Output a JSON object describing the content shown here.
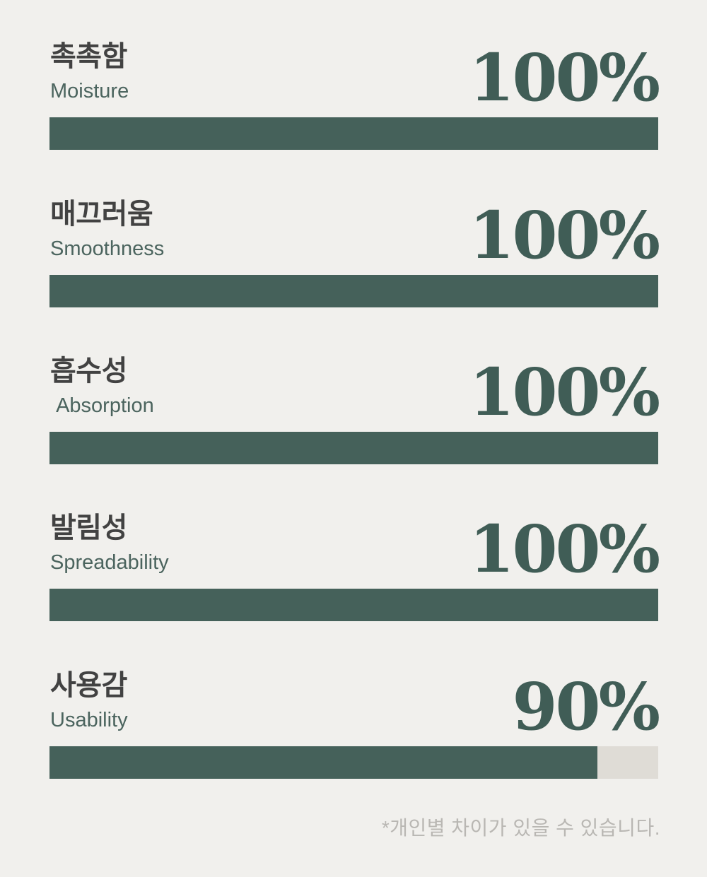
{
  "metrics": [
    {
      "name_ko": "촉촉함",
      "name_en": "Moisture",
      "percent": 100,
      "percent_label": "100%"
    },
    {
      "name_ko": "매끄러움",
      "name_en": "Smoothness",
      "percent": 100,
      "percent_label": "100%"
    },
    {
      "name_ko": "흡수성",
      "name_en": " Absorption",
      "percent": 100,
      "percent_label": "100%"
    },
    {
      "name_ko": "발림성",
      "name_en": "Spreadability",
      "percent": 100,
      "percent_label": "100%"
    },
    {
      "name_ko": "사용감",
      "name_en": "Usability",
      "percent": 90,
      "percent_label": "90%"
    }
  ],
  "footnote": "*개인별 차이가 있을 수 있습니다.",
  "colors": {
    "background": "#f1f0ed",
    "bar_fill": "#45615a",
    "bar_track": "#dfdcd6",
    "korean_label": "#424242",
    "english_label": "#4b645e",
    "percent_text": "#405d56",
    "footnote_text": "#b9b7b3"
  },
  "chart_data": {
    "type": "bar",
    "orientation": "horizontal",
    "categories": [
      "촉촉함 (Moisture)",
      "매끄러움 (Smoothness)",
      "흡수성 (Absorption)",
      "발림성 (Spreadability)",
      "사용감 (Usability)"
    ],
    "values": [
      100,
      100,
      100,
      100,
      90
    ],
    "value_labels": [
      "100%",
      "100%",
      "100%",
      "100%",
      "90%"
    ],
    "unit": "%",
    "xlim": [
      0,
      100
    ],
    "grid": false,
    "legend": false,
    "annotation": "*개인별 차이가 있을 수 있습니다."
  }
}
